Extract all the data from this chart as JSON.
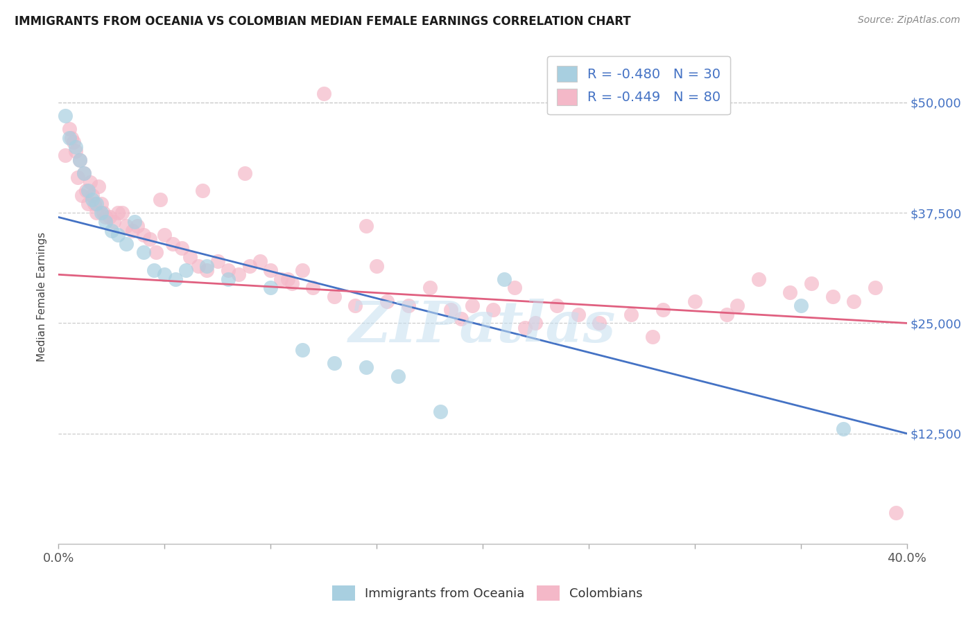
{
  "title": "IMMIGRANTS FROM OCEANIA VS COLOMBIAN MEDIAN FEMALE EARNINGS CORRELATION CHART",
  "source": "Source: ZipAtlas.com",
  "ylabel": "Median Female Earnings",
  "x_min": 0.0,
  "x_max": 0.4,
  "y_min": 0,
  "y_max": 56000,
  "y_ticks": [
    12500,
    25000,
    37500,
    50000
  ],
  "y_tick_labels": [
    "$12,500",
    "$25,000",
    "$37,500",
    "$50,000"
  ],
  "x_ticks": [
    0.0,
    0.05,
    0.1,
    0.15,
    0.2,
    0.25,
    0.3,
    0.35,
    0.4
  ],
  "x_tick_show": [
    0.0,
    0.4
  ],
  "legend_blue_label": "R = -0.480   N = 30",
  "legend_pink_label": "R = -0.449   N = 80",
  "legend_bottom_blue": "Immigrants from Oceania",
  "legend_bottom_pink": "Colombians",
  "blue_color": "#a8cfe0",
  "pink_color": "#f4b8c8",
  "blue_line_color": "#4472c4",
  "pink_line_color": "#e06080",
  "watermark": "ZIPatlas",
  "blue_line_y0": 37000,
  "blue_line_y1": 12500,
  "pink_line_y0": 30500,
  "pink_line_y1": 25000,
  "blue_x": [
    0.003,
    0.005,
    0.008,
    0.01,
    0.012,
    0.014,
    0.016,
    0.018,
    0.02,
    0.022,
    0.025,
    0.028,
    0.032,
    0.036,
    0.04,
    0.045,
    0.05,
    0.055,
    0.06,
    0.07,
    0.08,
    0.1,
    0.115,
    0.13,
    0.145,
    0.16,
    0.18,
    0.21,
    0.35,
    0.37
  ],
  "blue_y": [
    48500,
    46000,
    45000,
    43500,
    42000,
    40000,
    39000,
    38500,
    37500,
    36500,
    35500,
    35000,
    34000,
    36500,
    33000,
    31000,
    30500,
    30000,
    31000,
    31500,
    30000,
    29000,
    22000,
    20500,
    20000,
    19000,
    15000,
    30000,
    27000,
    13000
  ],
  "pink_x": [
    0.003,
    0.005,
    0.006,
    0.007,
    0.008,
    0.009,
    0.01,
    0.011,
    0.012,
    0.013,
    0.014,
    0.015,
    0.016,
    0.017,
    0.018,
    0.019,
    0.02,
    0.021,
    0.022,
    0.024,
    0.026,
    0.028,
    0.03,
    0.032,
    0.035,
    0.037,
    0.04,
    0.043,
    0.046,
    0.05,
    0.054,
    0.058,
    0.062,
    0.066,
    0.07,
    0.075,
    0.08,
    0.085,
    0.09,
    0.095,
    0.1,
    0.105,
    0.11,
    0.115,
    0.12,
    0.13,
    0.14,
    0.15,
    0.155,
    0.165,
    0.175,
    0.185,
    0.195,
    0.205,
    0.215,
    0.225,
    0.235,
    0.245,
    0.255,
    0.27,
    0.285,
    0.3,
    0.315,
    0.33,
    0.345,
    0.355,
    0.365,
    0.375,
    0.385,
    0.395,
    0.125,
    0.048,
    0.068,
    0.088,
    0.108,
    0.145,
    0.19,
    0.22,
    0.28,
    0.32
  ],
  "pink_y": [
    44000,
    47000,
    46000,
    45500,
    44500,
    41500,
    43500,
    39500,
    42000,
    40000,
    38500,
    41000,
    39500,
    38500,
    37500,
    40500,
    38500,
    37500,
    37000,
    37000,
    36500,
    37500,
    37500,
    36000,
    35500,
    36000,
    35000,
    34500,
    33000,
    35000,
    34000,
    33500,
    32500,
    31500,
    31000,
    32000,
    31000,
    30500,
    31500,
    32000,
    31000,
    30000,
    29500,
    31000,
    29000,
    28000,
    27000,
    31500,
    27500,
    27000,
    29000,
    26500,
    27000,
    26500,
    29000,
    25000,
    27000,
    26000,
    25000,
    26000,
    26500,
    27500,
    26000,
    30000,
    28500,
    29500,
    28000,
    27500,
    29000,
    3500,
    51000,
    39000,
    40000,
    42000,
    30000,
    36000,
    25500,
    24500,
    23500,
    27000
  ]
}
